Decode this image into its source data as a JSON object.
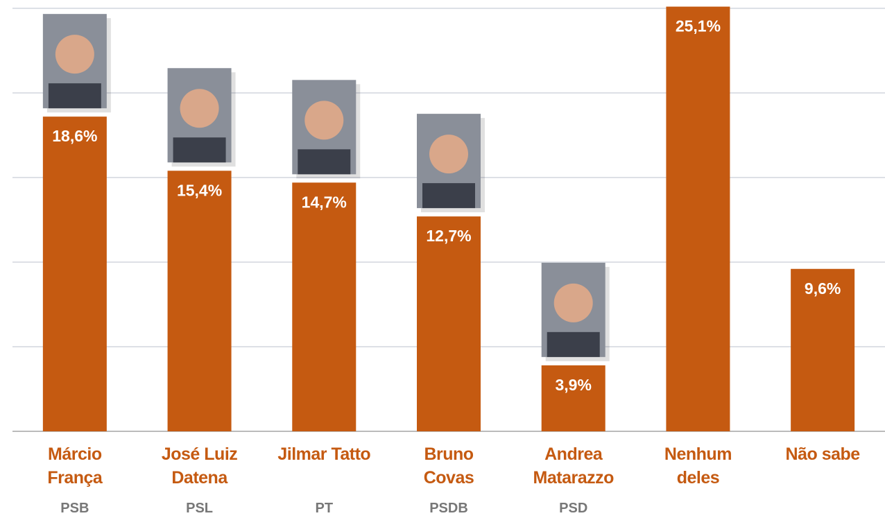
{
  "chart_data": {
    "type": "bar",
    "categories": [
      "Márcio França",
      "José Luiz Datena",
      "Jilmar Tatto",
      "Bruno Covas",
      "Andrea Matarazzo",
      "Nenhum deles",
      "Não sabe"
    ],
    "parties": [
      "PSB",
      "PSL",
      "PT",
      "PSDB",
      "PSD",
      null,
      null
    ],
    "values": [
      18.6,
      15.4,
      14.7,
      12.7,
      3.9,
      25.1,
      9.6
    ],
    "value_labels": [
      "18,6%",
      "15,4%",
      "14,7%",
      "12,7%",
      "3,9%",
      "25,1%",
      "9,6%"
    ],
    "color": "#c55a11",
    "ylim": [
      0,
      25
    ],
    "yticks": [
      0,
      5,
      10,
      15,
      20,
      25
    ],
    "grid": true
  }
}
